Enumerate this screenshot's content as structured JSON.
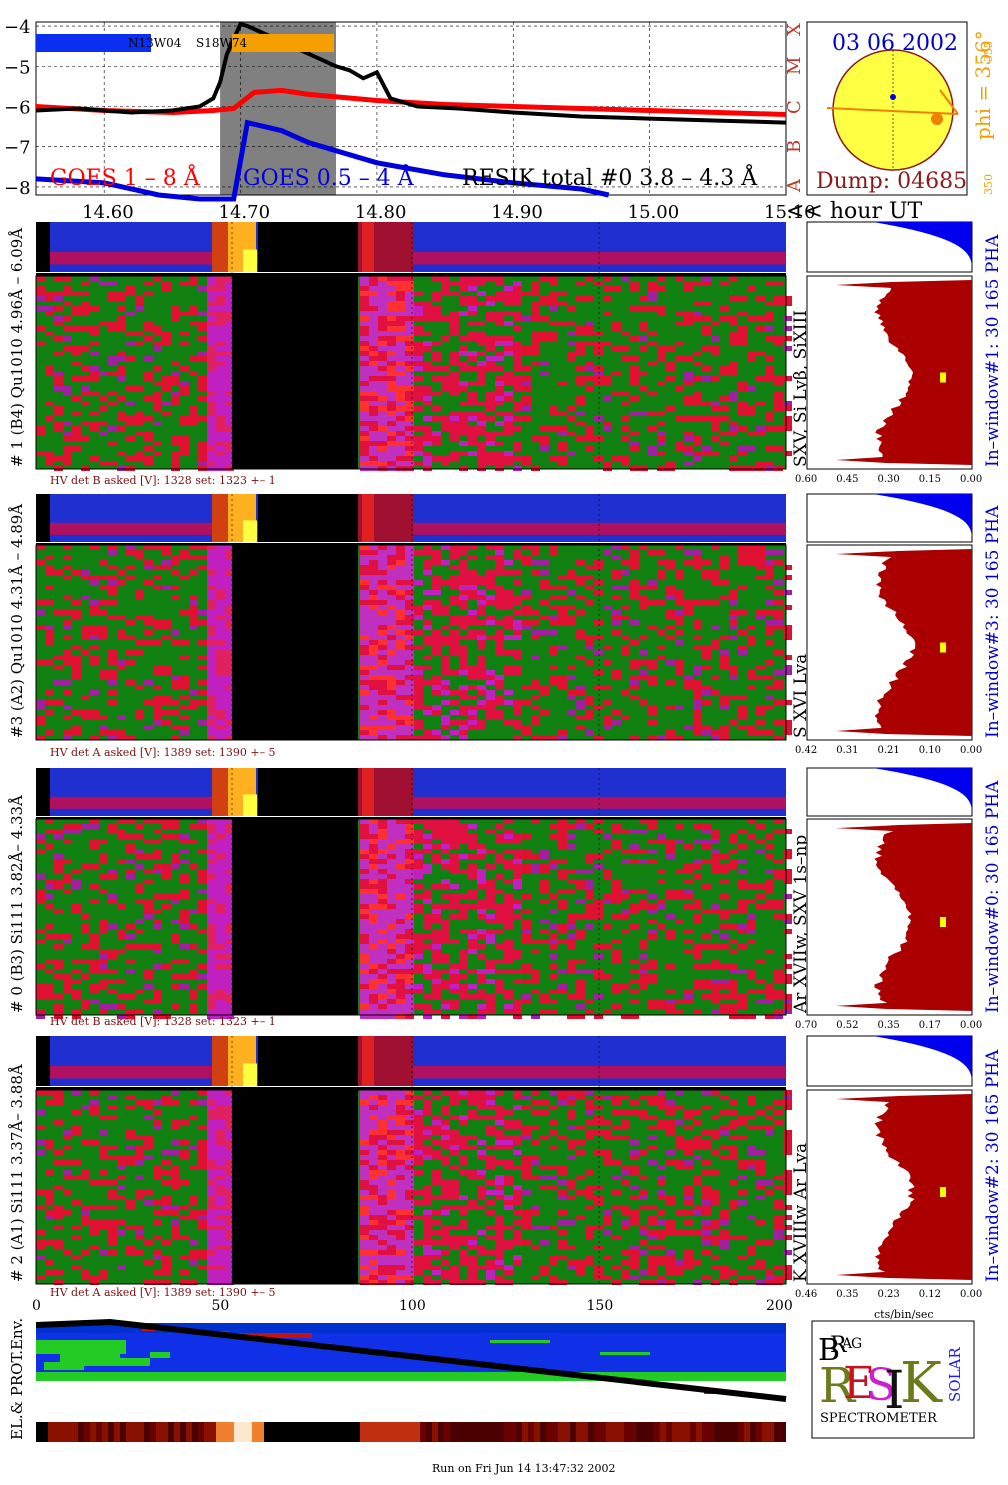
{
  "header": {
    "title": "GOES 1 – 8 Å",
    "goes_hi": "GOES 0.5 – 4 Å",
    "resik_total": "RESIK total #0  3.8 – 4.3 Å",
    "active_region_1": "N13W04",
    "active_region_2": "S18W74",
    "date": "03 06 2002",
    "dump": "Dump: 04685",
    "phi_label": "phi = 356°",
    "phi_small": "355",
    "phi_small2": "350",
    "flare_classes": [
      "X",
      "M",
      "C",
      "B",
      "A"
    ],
    "hour_label": "<< hour UT"
  },
  "colors": {
    "goes_long": "#ff0000",
    "goes_short": "#0000dd",
    "resik": "#000000",
    "gap": "#808080",
    "sun": "#ffff44",
    "sun_edge": "#8b1a1a",
    "title_blue": "#0000cc",
    "pha_blue": "#0000ee",
    "hist_red": "#aa0000",
    "label_dark": "#7a1010"
  },
  "chart_data": [
    {
      "type": "line",
      "title": "",
      "xlabel": "<< hour UT",
      "ylabel": "",
      "xlim": [
        14.55,
        15.1
      ],
      "ylim": [
        -8.2,
        -3.9
      ],
      "x_ticks": [
        "14.60",
        "14.70",
        "14.80",
        "14.90",
        "15.00",
        "15.10"
      ],
      "y_ticks": [
        "-4",
        "-5",
        "-6",
        "-7",
        "-8"
      ],
      "grid": true,
      "gap_shaded": [
        14.685,
        14.77
      ],
      "series": [
        {
          "name": "GOES 1 – 8 Å",
          "x": [
            14.55,
            14.6,
            14.65,
            14.68,
            14.695,
            14.71,
            14.73,
            14.75,
            14.8,
            14.85,
            14.9,
            14.95,
            15.0,
            15.05,
            15.1
          ],
          "y": [
            -6.0,
            -6.1,
            -6.15,
            -6.1,
            -6.05,
            -5.65,
            -5.6,
            -5.7,
            -5.85,
            -5.95,
            -6.0,
            -6.05,
            -6.1,
            -6.15,
            -6.2
          ]
        },
        {
          "name": "GOES 0.5 – 4 Å",
          "x": [
            14.55,
            14.6,
            14.64,
            14.67,
            14.695,
            14.705,
            14.73,
            14.75,
            14.8,
            14.85,
            14.9,
            14.95,
            14.97
          ],
          "y": [
            -7.8,
            -7.9,
            -8.2,
            -8.3,
            -8.3,
            -6.4,
            -6.6,
            -6.9,
            -7.4,
            -7.7,
            -7.9,
            -8.05,
            -8.2
          ]
        },
        {
          "name": "RESIK total #0  3.8 – 4.3 Å",
          "x": [
            14.55,
            14.58,
            14.62,
            14.65,
            14.67,
            14.68,
            14.685,
            14.69,
            14.7,
            14.705,
            14.77,
            14.78,
            14.79,
            14.8,
            14.81,
            14.83,
            14.86,
            14.9,
            14.95,
            15.0,
            15.05,
            15.1
          ],
          "y": [
            -6.1,
            -6.05,
            -6.15,
            -6.1,
            -6.0,
            -5.8,
            -5.4,
            -4.7,
            -3.95,
            -4.0,
            -5.0,
            -5.1,
            -5.3,
            -5.15,
            -5.8,
            -6.0,
            -6.05,
            -6.15,
            -6.25,
            -6.3,
            -6.35,
            -6.4
          ]
        }
      ]
    },
    {
      "type": "heatmap",
      "title": "",
      "ylabel": "# 1 (B4) Qu1010  4.96Å – 6.09Å",
      "line_label": "SXV, Si Lyβ, SiXIII",
      "hv": "HV det B asked [V]:  1328 set:  1323  +–   1",
      "window_label": "In–window#1:  30 165  PHA",
      "hist_ticks": [
        "0.60",
        "0.45",
        "0.30",
        "0.15",
        "0.00"
      ]
    },
    {
      "type": "heatmap",
      "title": "",
      "ylabel": "#3 (A2) Qu1010  4.31Å – 4.89Å",
      "line_label": "S XVI Lya",
      "hv": "HV det A asked [V]:  1389 set:  1390  +–   5",
      "window_label": "In–window#3:  30 165 PHA",
      "hist_ticks": [
        "0.42",
        "0.31",
        "0.21",
        "0.10",
        "0.00"
      ]
    },
    {
      "type": "heatmap",
      "title": "",
      "ylabel": "# 0 (B3) Si111  3.82Å– 4.33Å",
      "line_label": "Ar XVIIw,  SXV 1s–np",
      "hv": "HV det B asked [V]:  1328 set:  1323  +–   1",
      "window_label": "In–window#0:  30 165  PHA",
      "hist_ticks": [
        "0.70",
        "0.52",
        "0.35",
        "0.17",
        "0.00"
      ]
    },
    {
      "type": "heatmap",
      "title": "",
      "ylabel": "# 2 (A1) Si111  3.37Å– 3.88Å",
      "line_label": "K XVIIIw  Ar Lya",
      "hv": "HV det A asked [V]:  1389 set:  1390  +–   5",
      "window_label": "In–window#2:  30 165  PHA",
      "hist_ticks": [
        "0.46",
        "0.35",
        "0.23",
        "0.12",
        "0.00"
      ],
      "x_ticks": [
        "0",
        "50",
        "100",
        "150",
        "200"
      ],
      "hist_xlabel": "cts/bin/sec"
    }
  ],
  "bottom": {
    "env_label": "EL.& PROT.Env.",
    "footer": "Run on Fri Jun 14 13:47:32 2002",
    "logo_word": "SPECTROMETER",
    "logo_letters": [
      "B",
      "R",
      "A",
      "G",
      "R",
      "E",
      "S",
      "I",
      "K",
      "S",
      "O",
      "L",
      "A",
      "R"
    ]
  }
}
